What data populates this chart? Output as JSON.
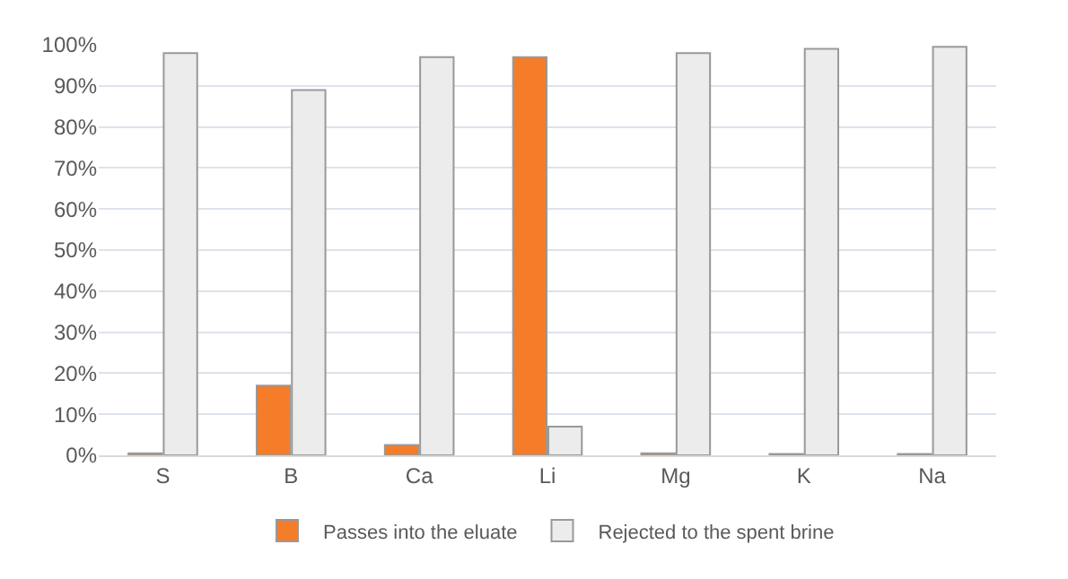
{
  "chart_data": {
    "type": "bar",
    "categories": [
      "S",
      "B",
      "Ca",
      "Li",
      "Mg",
      "K",
      "Na"
    ],
    "series": [
      {
        "name": "Passes into the eluate",
        "color": "#f57c29",
        "values": [
          0.5,
          17,
          2.5,
          97,
          0.5,
          0.3,
          0.3
        ]
      },
      {
        "name": "Rejected to the spent brine",
        "color": "#ececec",
        "values": [
          98,
          89,
          97,
          7,
          98,
          99,
          99.5
        ]
      }
    ],
    "ylim": [
      0,
      100
    ],
    "yticks": [
      {
        "value": 0,
        "label": "0%"
      },
      {
        "value": 10,
        "label": "10%"
      },
      {
        "value": 20,
        "label": "20%"
      },
      {
        "value": 30,
        "label": "30%"
      },
      {
        "value": 40,
        "label": "40%"
      },
      {
        "value": 50,
        "label": "50%"
      },
      {
        "value": 60,
        "label": "60%"
      },
      {
        "value": 70,
        "label": "70%"
      },
      {
        "value": 80,
        "label": "80%"
      },
      {
        "value": 90,
        "label": "90%"
      },
      {
        "value": 100,
        "label": "100%"
      }
    ],
    "grid": "y",
    "legend": "bottom"
  }
}
